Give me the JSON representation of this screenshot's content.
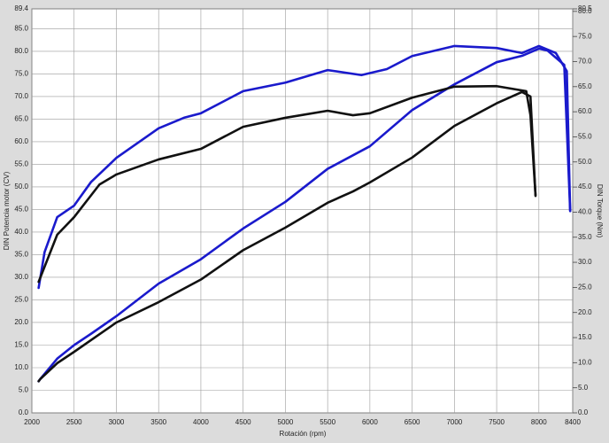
{
  "chart_data": {
    "type": "line",
    "x_label": "Rotación (rpm)",
    "y_label": "DIN Potencia motor (CV)",
    "y2_label": "DIN Torque (Nm)",
    "xlim": [
      2000,
      8400
    ],
    "xticks": [
      2000,
      2500,
      3000,
      3500,
      4000,
      4500,
      5000,
      5500,
      6000,
      6500,
      7000,
      7500,
      8000,
      8400
    ],
    "ylim": [
      0,
      89.4
    ],
    "yticks": [
      {
        "value": 0,
        "label": "0.0"
      },
      {
        "value": 5,
        "label": "5.0"
      },
      {
        "value": 10,
        "label": "10.0"
      },
      {
        "value": 15,
        "label": "15.0"
      },
      {
        "value": 20,
        "label": "20.0"
      },
      {
        "value": 25,
        "label": "25.0"
      },
      {
        "value": 30,
        "label": "30.0"
      },
      {
        "value": 35,
        "label": "35.0"
      },
      {
        "value": 40,
        "label": "40.0"
      },
      {
        "value": 45,
        "label": "45.0"
      },
      {
        "value": 50,
        "label": "50.0"
      },
      {
        "value": 55,
        "label": "55.0"
      },
      {
        "value": 60,
        "label": "60.0"
      },
      {
        "value": 65,
        "label": "65.0"
      },
      {
        "value": 70,
        "label": "70.0"
      },
      {
        "value": 75,
        "label": "75.0"
      },
      {
        "value": 80,
        "label": "80.0"
      },
      {
        "value": 85,
        "label": "85.0"
      },
      89.4
    ],
    "y2lim": [
      0,
      80.5
    ],
    "y2ticks": [
      {
        "value": 0,
        "label": "0.0"
      },
      {
        "value": 5,
        "label": "5.0"
      },
      {
        "value": 10,
        "label": "10.0"
      },
      {
        "value": 15,
        "label": "15.0"
      },
      {
        "value": 20,
        "label": "20.0"
      },
      {
        "value": 25,
        "label": "25.0"
      },
      {
        "value": 30,
        "label": "30.0"
      },
      {
        "value": 35,
        "label": "35.0"
      },
      {
        "value": 40,
        "label": "40.0"
      },
      {
        "value": 45,
        "label": "45.0"
      },
      {
        "value": 50,
        "label": "50.0"
      },
      {
        "value": 55,
        "label": "55.0"
      },
      {
        "value": 60,
        "label": "60.0"
      },
      {
        "value": 65,
        "label": "65.0"
      },
      {
        "value": 70,
        "label": "70.0"
      },
      {
        "value": 75,
        "label": "75.0"
      },
      {
        "value": 80,
        "label": "80.0"
      },
      80.5
    ],
    "grid": true,
    "series": [
      {
        "color": "#1a1acc",
        "x": [
          2080,
          2100,
          2300,
          2500,
          2700,
          3000,
          3500,
          4000,
          4500,
          5000,
          5500,
          6000,
          6500,
          7000,
          7500,
          7800,
          8000,
          8100,
          8300,
          8370
        ],
        "values": [
          7,
          7.5,
          12,
          15,
          17.5,
          21.4,
          28.6,
          34,
          40.8,
          46.7,
          54,
          59,
          67,
          72.7,
          77.6,
          79,
          80.6,
          80.2,
          77,
          44.7
        ]
      },
      {
        "color": "#111111",
        "x": [
          2080,
          2100,
          2300,
          2500,
          3000,
          3500,
          4000,
          4500,
          5000,
          5500,
          5800,
          6000,
          6500,
          7000,
          7500,
          7800,
          7900,
          7960
        ],
        "values": [
          7,
          7.5,
          11,
          13.5,
          20,
          24.5,
          29.5,
          36,
          41,
          46.5,
          49,
          51,
          56.5,
          63.5,
          68.5,
          71,
          70,
          48
        ]
      },
      {
        "color": "#1a1acc",
        "axis": "y2",
        "x": [
          2080,
          2150,
          2300,
          2500,
          2700,
          3000,
          3500,
          3800,
          4000,
          4500,
          5000,
          5500,
          5900,
          6200,
          6500,
          7000,
          7500,
          7800,
          8000,
          8200,
          8330,
          8370
        ],
        "values": [
          24.9,
          32,
          39,
          41.3,
          46,
          50.8,
          56.7,
          58.8,
          59.7,
          64.1,
          65.8,
          68.3,
          67.3,
          68.5,
          71.1,
          73.1,
          72.7,
          71.7,
          73.1,
          71.7,
          68.1,
          40.2
        ]
      },
      {
        "color": "#111111",
        "axis": "y2",
        "x": [
          2080,
          2300,
          2500,
          2800,
          3000,
          3500,
          4000,
          4500,
          5000,
          5500,
          5800,
          6000,
          6500,
          7000,
          7500,
          7850,
          7900,
          7960
        ],
        "values": [
          26.1,
          35.5,
          39,
          45.5,
          47.5,
          50.5,
          52.6,
          57,
          58.8,
          60.2,
          59.3,
          59.7,
          62.8,
          65,
          65.1,
          64.1,
          59.3,
          43.4
        ]
      }
    ]
  }
}
